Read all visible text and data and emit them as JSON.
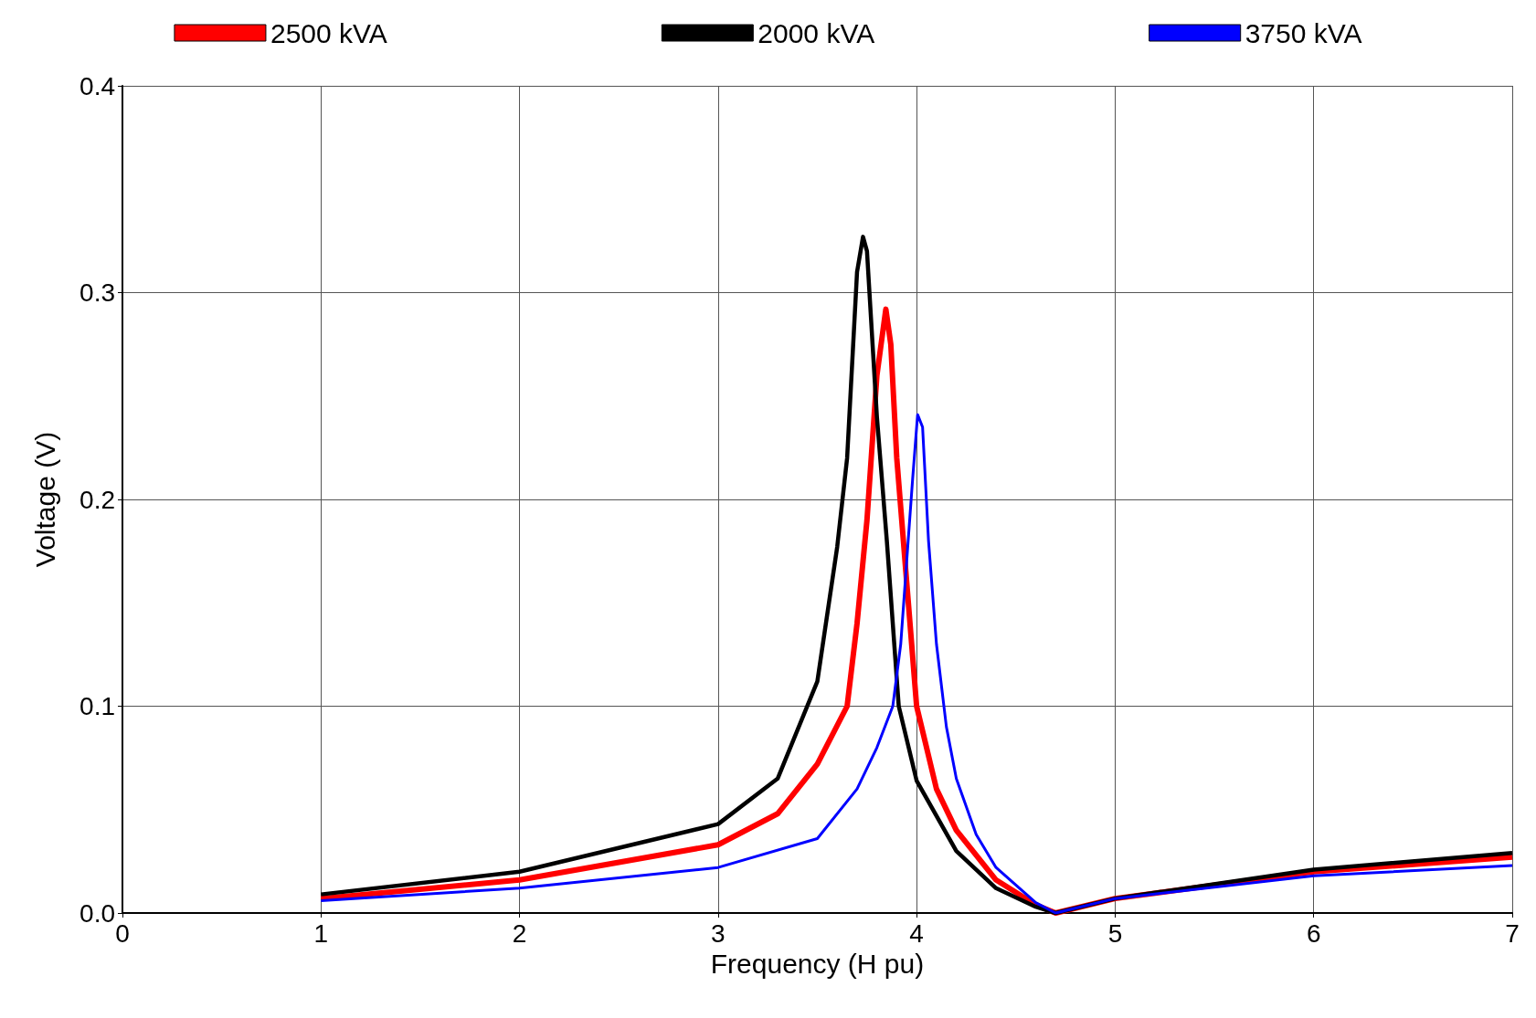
{
  "chart_data": {
    "type": "line",
    "xlabel": "Frequency (H pu)",
    "ylabel": "Voltage (V)",
    "xlim": [
      0,
      7
    ],
    "xticks": [
      0,
      1,
      2,
      3,
      4,
      5,
      6,
      7
    ],
    "ylim": [
      0,
      0.4
    ],
    "yticks": [
      {
        "value": 0,
        "label": "0.0"
      },
      0.1,
      0.2,
      0.3,
      0.4
    ],
    "grid": true,
    "legend": "top",
    "marker": "none",
    "line_style": "solid",
    "series": [
      {
        "name": "2500 kVA",
        "color": "#ff0000",
        "x": [
          1,
          2,
          3,
          3.3,
          3.5,
          3.65,
          3.7,
          3.75,
          3.8,
          3.845,
          3.87,
          3.9,
          3.95,
          4.0,
          4.1,
          4.2,
          4.4,
          4.6,
          4.7,
          5,
          6,
          7
        ],
        "values": [
          0.007,
          0.016,
          0.033,
          0.048,
          0.072,
          0.1,
          0.14,
          0.19,
          0.26,
          0.292,
          0.275,
          0.22,
          0.16,
          0.1,
          0.06,
          0.04,
          0.016,
          0.004,
          0,
          0.007,
          0.02,
          0.027
        ]
      },
      {
        "name": "2000 kVA",
        "color": "#000000",
        "x": [
          1,
          2,
          3,
          3.3,
          3.5,
          3.6,
          3.65,
          3.7,
          3.73,
          3.75,
          3.8,
          3.85,
          3.91,
          4.0,
          4.2,
          4.4,
          4.6,
          4.7,
          5,
          6,
          7
        ],
        "values": [
          0.009,
          0.02,
          0.043,
          0.065,
          0.112,
          0.177,
          0.22,
          0.31,
          0.327,
          0.32,
          0.24,
          0.18,
          0.1,
          0.064,
          0.03,
          0.012,
          0.003,
          0,
          0.007,
          0.021,
          0.029
        ]
      },
      {
        "name": "3750 kVA",
        "color": "#0000ff",
        "x": [
          1,
          2,
          3,
          3.5,
          3.7,
          3.8,
          3.88,
          3.92,
          3.95,
          3.98,
          4.005,
          4.03,
          4.06,
          4.1,
          4.15,
          4.2,
          4.3,
          4.4,
          4.6,
          4.7,
          5,
          6,
          7
        ],
        "values": [
          0.006,
          0.012,
          0.022,
          0.036,
          0.06,
          0.08,
          0.1,
          0.13,
          0.17,
          0.21,
          0.241,
          0.235,
          0.18,
          0.13,
          0.09,
          0.065,
          0.038,
          0.022,
          0.005,
          0,
          0.007,
          0.018,
          0.023
        ]
      }
    ]
  }
}
